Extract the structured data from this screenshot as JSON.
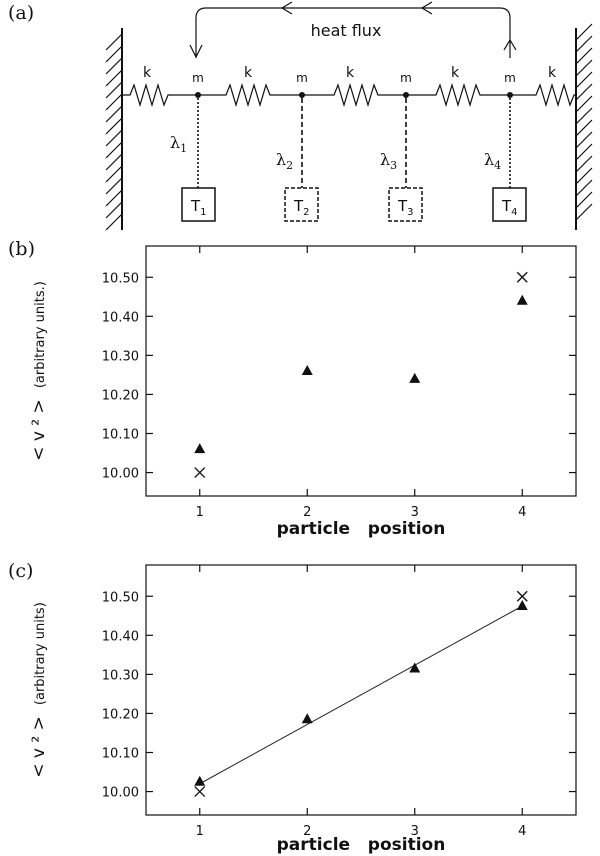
{
  "panel_a": {
    "label": "(a)",
    "heat_flux": "heat  flux",
    "spring_label": "k",
    "mass_label": "m",
    "couplings": [
      {
        "greek": "λ",
        "sub": "1"
      },
      {
        "greek": "λ",
        "sub": "2"
      },
      {
        "greek": "λ",
        "sub": "3"
      },
      {
        "greek": "λ",
        "sub": "4"
      }
    ],
    "reservoirs": [
      {
        "base": "T",
        "sub": "1"
      },
      {
        "base": "T",
        "sub": "2"
      },
      {
        "base": "T",
        "sub": "3"
      },
      {
        "base": "T",
        "sub": "4"
      }
    ]
  },
  "panel_b": {
    "label": "(b)",
    "ylabel_main": "< v ² >",
    "ylabel_units": "(arbitrary units.)"
  },
  "panel_c": {
    "label": "(c)",
    "ylabel_main": "< v ² >",
    "ylabel_units": "(arbitrary units)"
  },
  "chart_data": [
    {
      "type": "scatter",
      "xlabel": "particle   position",
      "ylabel": "< v ² > (arbitrary units.)",
      "xlim": [
        0.5,
        4.5
      ],
      "ylim": [
        9.94,
        10.58
      ],
      "xticks": [
        1,
        2,
        3,
        4
      ],
      "yticks": [
        10.0,
        10.1,
        10.2,
        10.3,
        10.4,
        10.5
      ],
      "yticklabels": [
        "10.00",
        "10.10",
        "10.20",
        "10.30",
        "10.40",
        "10.50"
      ],
      "grid": false,
      "series": [
        {
          "marker": "cross",
          "x": [
            1,
            4
          ],
          "y": [
            10.0,
            10.5
          ]
        },
        {
          "marker": "triangle",
          "x": [
            1,
            2,
            3,
            4
          ],
          "y": [
            10.06,
            10.26,
            10.24,
            10.44
          ]
        }
      ]
    },
    {
      "type": "scatter",
      "xlabel": "particle   position",
      "ylabel": "< v ² > (arbitrary units)",
      "xlim": [
        0.5,
        4.5
      ],
      "ylim": [
        9.94,
        10.58
      ],
      "xticks": [
        1,
        2,
        3,
        4
      ],
      "yticks": [
        10.0,
        10.1,
        10.2,
        10.3,
        10.4,
        10.5
      ],
      "yticklabels": [
        "10.00",
        "10.10",
        "10.20",
        "10.30",
        "10.40",
        "10.50"
      ],
      "grid": false,
      "series": [
        {
          "marker": "cross",
          "x": [
            1,
            4
          ],
          "y": [
            10.0,
            10.5
          ]
        },
        {
          "marker": "triangle",
          "x": [
            1,
            2,
            3,
            4
          ],
          "y": [
            10.025,
            10.185,
            10.315,
            10.475
          ]
        },
        {
          "marker": "line",
          "x": [
            1,
            4
          ],
          "y": [
            10.02,
            10.475
          ]
        }
      ]
    }
  ]
}
